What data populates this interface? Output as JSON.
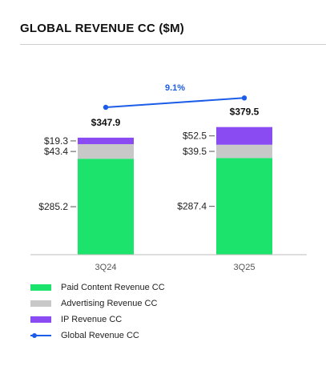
{
  "title": "GLOBAL REVENUE CC ($M)",
  "colors": {
    "paid_content": "#1be36c",
    "advertising": "#c8c8c8",
    "ip": "#8a4bf2",
    "global": "#1b5de8"
  },
  "chart_data": {
    "type": "bar",
    "stacked": true,
    "categories": [
      "3Q24",
      "3Q25"
    ],
    "series": [
      {
        "name": "Paid Content Revenue CC",
        "values": [
          285.2,
          287.4
        ],
        "labels": [
          "$285.2",
          "$287.4"
        ]
      },
      {
        "name": "Advertising Revenue CC",
        "values": [
          43.4,
          39.5
        ],
        "labels": [
          "$43.4",
          "$39.5"
        ]
      },
      {
        "name": "IP Revenue CC",
        "values": [
          19.3,
          52.5
        ],
        "labels": [
          "$19.3",
          "$52.5"
        ]
      }
    ],
    "line": {
      "name": "Global Revenue CC",
      "values": [
        347.9,
        379.5
      ],
      "labels": [
        "$347.9",
        "$379.5"
      ],
      "growth_label": "9.1%"
    },
    "legend_position": "bottom-left",
    "grid": false
  }
}
